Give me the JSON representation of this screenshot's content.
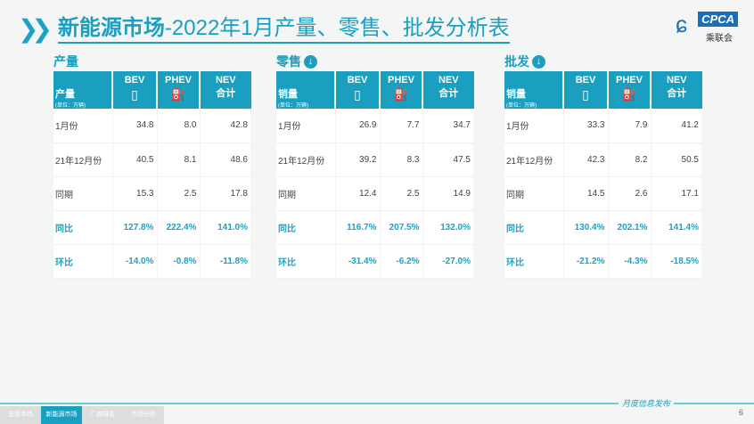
{
  "title": {
    "bold": "新能源市场",
    "rest": "-2022年1月产量、零售、批发分析表"
  },
  "logo": {
    "en": "CPCA",
    "cn": "乘联会"
  },
  "headers": {
    "bev": "BEV",
    "phev": "PHEV",
    "nev": "NEV",
    "nev2": "合计",
    "unit": "(单位：万辆)"
  },
  "sections": [
    {
      "title": "产量",
      "label": "产量",
      "rows": [
        {
          "label": "1月份",
          "v": [
            "34.8",
            "8.0",
            "42.8"
          ]
        },
        {
          "label": "21年12月份",
          "v": [
            "40.5",
            "8.1",
            "48.6"
          ]
        },
        {
          "label": "同期",
          "v": [
            "15.3",
            "2.5",
            "17.8"
          ]
        },
        {
          "label": "同比",
          "v": [
            "127.8%",
            "222.4%",
            "141.0%"
          ]
        },
        {
          "label": "环比",
          "v": [
            "-14.0%",
            "-0.8%",
            "-11.8%"
          ]
        }
      ]
    },
    {
      "title": "零售",
      "label": "销量",
      "rows": [
        {
          "label": "1月份",
          "v": [
            "26.9",
            "7.7",
            "34.7"
          ]
        },
        {
          "label": "21年12月份",
          "v": [
            "39.2",
            "8.3",
            "47.5"
          ]
        },
        {
          "label": "同期",
          "v": [
            "12.4",
            "2.5",
            "14.9"
          ]
        },
        {
          "label": "同比",
          "v": [
            "116.7%",
            "207.5%",
            "132.0%"
          ]
        },
        {
          "label": "环比",
          "v": [
            "-31.4%",
            "-6.2%",
            "-27.0%"
          ]
        }
      ]
    },
    {
      "title": "批发",
      "label": "销量",
      "rows": [
        {
          "label": "1月份",
          "v": [
            "33.3",
            "7.9",
            "41.2"
          ]
        },
        {
          "label": "21年12月份",
          "v": [
            "42.3",
            "8.2",
            "50.5"
          ]
        },
        {
          "label": "同期",
          "v": [
            "14.5",
            "2.6",
            "17.1"
          ]
        },
        {
          "label": "同比",
          "v": [
            "130.4%",
            "202.1%",
            "141.4%"
          ]
        },
        {
          "label": "环比",
          "v": [
            "-21.2%",
            "-4.3%",
            "-18.5%"
          ]
        }
      ]
    }
  ],
  "footer": {
    "tabs": [
      "总体市场",
      "新能源市场",
      "厂商排名",
      "市场分析"
    ],
    "label": "月度信息发布",
    "page": "6"
  }
}
